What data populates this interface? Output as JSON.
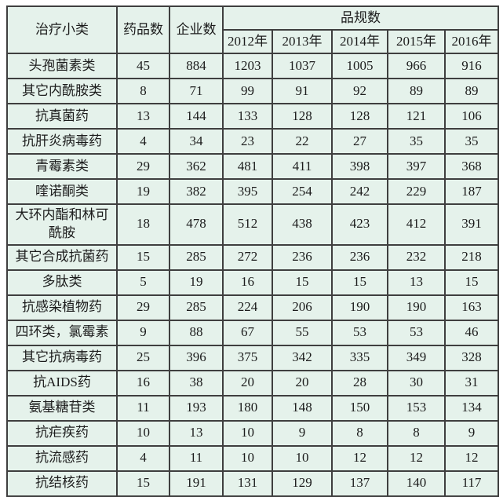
{
  "colors": {
    "cell_background": "#e5f2eb",
    "border": "#3f3f3f",
    "text": "#1c1c1c",
    "page_background": "#ffffff"
  },
  "table": {
    "header": {
      "category": "治疗小类",
      "drug_count": "药品数",
      "company_count": "企业数",
      "spec_group": "品规数",
      "years": [
        "2012年",
        "2013年",
        "2014年",
        "2015年",
        "2016年"
      ]
    },
    "rows": [
      {
        "cells": [
          "头孢菌素类",
          "45",
          "884",
          "1203",
          "1037",
          "1005",
          "966",
          "916"
        ]
      },
      {
        "cells": [
          "其它内酰胺类",
          "8",
          "71",
          "99",
          "91",
          "92",
          "89",
          "89"
        ]
      },
      {
        "cells": [
          "抗真菌药",
          "13",
          "144",
          "133",
          "128",
          "128",
          "121",
          "106"
        ]
      },
      {
        "cells": [
          "抗肝炎病毒药",
          "4",
          "34",
          "23",
          "22",
          "27",
          "35",
          "35"
        ]
      },
      {
        "cells": [
          "青霉素类",
          "29",
          "362",
          "481",
          "411",
          "398",
          "397",
          "368"
        ]
      },
      {
        "cells": [
          "喹诺酮类",
          "19",
          "382",
          "395",
          "254",
          "242",
          "229",
          "187"
        ]
      },
      {
        "cells": [
          "大环内酯和林可酰胺",
          "18",
          "478",
          "512",
          "438",
          "423",
          "412",
          "391"
        ]
      },
      {
        "cells": [
          "其它合成抗菌药",
          "15",
          "285",
          "272",
          "236",
          "236",
          "232",
          "218"
        ]
      },
      {
        "cells": [
          "多肽类",
          "5",
          "19",
          "16",
          "15",
          "15",
          "13",
          "15"
        ]
      },
      {
        "cells": [
          "抗感染植物药",
          "29",
          "285",
          "224",
          "206",
          "190",
          "190",
          "163"
        ]
      },
      {
        "cells": [
          "四环类，氯霉素",
          "9",
          "88",
          "67",
          "55",
          "53",
          "53",
          "46"
        ]
      },
      {
        "cells": [
          "其它抗病毒药",
          "25",
          "396",
          "375",
          "342",
          "335",
          "349",
          "328"
        ]
      },
      {
        "cells": [
          "抗AIDS药",
          "16",
          "38",
          "20",
          "20",
          "28",
          "30",
          "31"
        ]
      },
      {
        "cells": [
          "氨基糖苷类",
          "11",
          "193",
          "180",
          "148",
          "150",
          "153",
          "134"
        ]
      },
      {
        "cells": [
          "抗疟疾药",
          "10",
          "13",
          "10",
          "9",
          "8",
          "8",
          "9"
        ]
      },
      {
        "cells": [
          "抗流感药",
          "4",
          "11",
          "10",
          "10",
          "12",
          "12",
          "12"
        ]
      },
      {
        "cells": [
          "抗结核药",
          "15",
          "191",
          "131",
          "129",
          "137",
          "140",
          "117"
        ]
      }
    ]
  },
  "chart_data": {
    "type": "table",
    "title": "",
    "columns": [
      "治疗小类",
      "药品数",
      "企业数",
      "2012年",
      "2013年",
      "2014年",
      "2015年",
      "2016年"
    ],
    "column_group": {
      "label": "品规数",
      "spans": [
        "2012年",
        "2013年",
        "2014年",
        "2015年",
        "2016年"
      ]
    },
    "rows": [
      [
        "头孢菌素类",
        45,
        884,
        1203,
        1037,
        1005,
        966,
        916
      ],
      [
        "其它内酰胺类",
        8,
        71,
        99,
        91,
        92,
        89,
        89
      ],
      [
        "抗真菌药",
        13,
        144,
        133,
        128,
        128,
        121,
        106
      ],
      [
        "抗肝炎病毒药",
        4,
        34,
        23,
        22,
        27,
        35,
        35
      ],
      [
        "青霉素类",
        29,
        362,
        481,
        411,
        398,
        397,
        368
      ],
      [
        "喹诺酮类",
        19,
        382,
        395,
        254,
        242,
        229,
        187
      ],
      [
        "大环内酯和林可酰胺",
        18,
        478,
        512,
        438,
        423,
        412,
        391
      ],
      [
        "其它合成抗菌药",
        15,
        285,
        272,
        236,
        236,
        232,
        218
      ],
      [
        "多肽类",
        5,
        19,
        16,
        15,
        15,
        13,
        15
      ],
      [
        "抗感染植物药",
        29,
        285,
        224,
        206,
        190,
        190,
        163
      ],
      [
        "四环类，氯霉素",
        9,
        88,
        67,
        55,
        53,
        53,
        46
      ],
      [
        "其它抗病毒药",
        25,
        396,
        375,
        342,
        335,
        349,
        328
      ],
      [
        "抗AIDS药",
        16,
        38,
        20,
        20,
        28,
        30,
        31
      ],
      [
        "氨基糖苷类",
        11,
        193,
        180,
        148,
        150,
        153,
        134
      ],
      [
        "抗疟疾药",
        10,
        13,
        10,
        9,
        8,
        8,
        9
      ],
      [
        "抗流感药",
        4,
        11,
        10,
        10,
        12,
        12,
        12
      ],
      [
        "抗结核药",
        15,
        191,
        131,
        129,
        137,
        140,
        117
      ]
    ]
  }
}
